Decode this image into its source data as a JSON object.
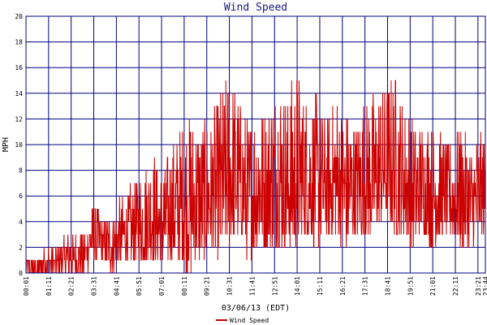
{
  "chart_data": {
    "type": "line",
    "title": "Wind Speed",
    "xlabel": "03/06/13 (EDT)",
    "ylabel": "MPH",
    "ylim": [
      0,
      20
    ],
    "yticks": [
      0,
      2,
      4,
      6,
      8,
      10,
      12,
      14,
      16,
      18,
      20
    ],
    "xticks": [
      "00:01",
      "01:11",
      "02:21",
      "03:31",
      "04:41",
      "05:51",
      "07:01",
      "08:11",
      "09:21",
      "10:31",
      "11:41",
      "12:51",
      "14:01",
      "15:11",
      "16:21",
      "17:31",
      "18:41",
      "19:51",
      "21:01",
      "22:11",
      "23:21",
      "23:44"
    ],
    "grid": true,
    "legend_placement": "bottom-center",
    "series": [
      {
        "name": "Wind Speed",
        "color": "#cc0000",
        "x": [
          "00:00",
          "00:30",
          "01:00",
          "01:30",
          "02:00",
          "02:30",
          "03:00",
          "03:30",
          "04:00",
          "04:30",
          "05:00",
          "05:30",
          "06:00",
          "06:30",
          "07:00",
          "07:30",
          "08:00",
          "08:30",
          "09:00",
          "09:30",
          "10:00",
          "10:30",
          "11:00",
          "11:30",
          "12:00",
          "12:30",
          "13:00",
          "13:30",
          "14:00",
          "14:30",
          "15:00",
          "15:30",
          "16:00",
          "16:30",
          "17:00",
          "17:30",
          "18:00",
          "18:30",
          "19:00",
          "19:30",
          "20:00",
          "20:30",
          "21:00",
          "21:30",
          "22:00",
          "22:30",
          "23:00",
          "23:30",
          "23:59"
        ],
        "min": [
          0,
          0,
          0,
          0,
          0,
          0,
          0,
          1,
          1,
          0,
          1,
          1,
          1,
          1,
          1,
          1,
          1,
          0,
          1,
          2,
          1,
          2,
          3,
          1,
          2,
          2,
          2,
          2,
          2,
          3,
          2,
          3,
          3,
          2,
          3,
          3,
          3,
          4,
          3,
          3,
          2,
          3,
          2,
          3,
          3,
          2,
          2,
          3,
          3
        ],
        "max": [
          1,
          1,
          2,
          2,
          3,
          3,
          3,
          6,
          4,
          5,
          6,
          7,
          8,
          10,
          8,
          10,
          12,
          13,
          12,
          12,
          14,
          16,
          14,
          12,
          14,
          13,
          16,
          14,
          16,
          14,
          14,
          12,
          14,
          13,
          12,
          14,
          14,
          15,
          16,
          14,
          12,
          12,
          12,
          11,
          10,
          12,
          10,
          11,
          11
        ]
      }
    ]
  }
}
